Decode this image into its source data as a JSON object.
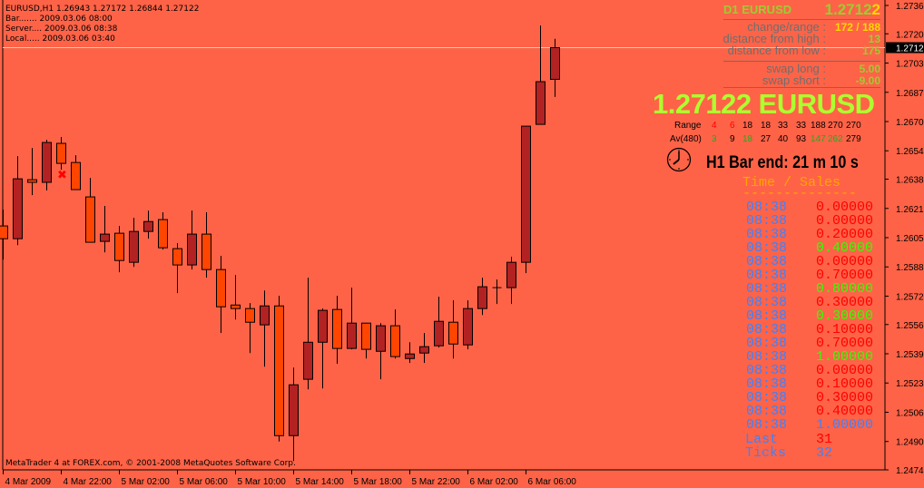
{
  "colors": {
    "background": "#FF6347",
    "bull": "#B22222",
    "bear": "#FF4500",
    "bid_line": "#7FFFD4",
    "green": "#ADFF2F",
    "gold": "#FFD700",
    "gray": "#6E6E6E",
    "ts_time": "#3C82FF",
    "red": "#FF0000",
    "lime": "#33FF00"
  },
  "header": {
    "line1": "EURUSD,H1  1.26943 1.27172 1.26844 1.27122",
    "line2": "Bar....... 2009.03.06 08:00",
    "line3": "Server.... 2009.03.06 08:38",
    "line4": "Local..... 2009.03.06 03:40"
  },
  "copyright": "MetaTrader 4 at FOREX.com, © 2001-2008 MetaQuotes Software Corp.",
  "panel": {
    "title": "D1 EURUSD",
    "price_main": "1.2712",
    "price_last_digit": "2",
    "change_range_label": "change/range :",
    "change_range_value": "172 / 188",
    "dist_high_label": "distance from high :",
    "dist_high_value": "13",
    "dist_low_label": "distance from low :",
    "dist_low_value": "175",
    "swap_long_label": "swap long :",
    "swap_long_value": "5.00",
    "swap_short_label": "swap short :",
    "swap_short_value": "-9.00",
    "big_price": "1.27122 EURUSD",
    "range_label": "Range",
    "range_values": [
      {
        "v": "4",
        "c": "red"
      },
      {
        "v": "6",
        "c": "red"
      },
      {
        "v": "18",
        "c": "black"
      },
      {
        "v": "18",
        "c": "black"
      },
      {
        "v": "33",
        "c": "black"
      },
      {
        "v": "33",
        "c": "black"
      },
      {
        "v": "188",
        "c": "black"
      },
      {
        "v": "270",
        "c": "black"
      },
      {
        "v": "270",
        "c": "black"
      }
    ],
    "av_label": "Av(480)",
    "av_values": [
      {
        "v": "3",
        "c": "green"
      },
      {
        "v": "9",
        "c": "black"
      },
      {
        "v": "18",
        "c": "green"
      },
      {
        "v": "27",
        "c": "black"
      },
      {
        "v": "40",
        "c": "black"
      },
      {
        "v": "93",
        "c": "black"
      },
      {
        "v": "147",
        "c": "green"
      },
      {
        "v": "262",
        "c": "green"
      },
      {
        "v": "279",
        "c": "black"
      }
    ],
    "clock_icon": "clock-icon",
    "bar_end": "H1 Bar end: 21 m 10 s"
  },
  "time_sales": {
    "title": "Time / Sales",
    "divider": "--------------",
    "rows": [
      {
        "time": "08:38",
        "value": "0.00000",
        "c": "red"
      },
      {
        "time": "08:38",
        "value": "0.00000",
        "c": "red"
      },
      {
        "time": "08:38",
        "value": "0.20000",
        "c": "red"
      },
      {
        "time": "08:38",
        "value": "0.40000",
        "c": "green"
      },
      {
        "time": "08:38",
        "value": "0.00000",
        "c": "red"
      },
      {
        "time": "08:38",
        "value": "0.70000",
        "c": "red"
      },
      {
        "time": "08:38",
        "value": "0.80000",
        "c": "green"
      },
      {
        "time": "08:38",
        "value": "0.30000",
        "c": "red"
      },
      {
        "time": "08:38",
        "value": "0.30000",
        "c": "green"
      },
      {
        "time": "08:38",
        "value": "0.10000",
        "c": "red"
      },
      {
        "time": "08:38",
        "value": "0.70000",
        "c": "red"
      },
      {
        "time": "08:38",
        "value": "1.00000",
        "c": "green"
      },
      {
        "time": "08:38",
        "value": "0.00000",
        "c": "red"
      },
      {
        "time": "08:38",
        "value": "0.10000",
        "c": "red"
      },
      {
        "time": "08:38",
        "value": "0.30000",
        "c": "red"
      },
      {
        "time": "08:38",
        "value": "0.40000",
        "c": "red"
      },
      {
        "time": "08:38",
        "value": "1.00000",
        "c": "blue"
      }
    ],
    "last_label": "Last",
    "last_value": "31",
    "ticks_label": "Ticks",
    "ticks_value": "32"
  },
  "chart_data": {
    "type": "candlestick",
    "symbol": "EURUSD",
    "timeframe": "H1",
    "ylim": [
      1.2474,
      1.2736
    ],
    "y_ticks": [
      "1.27360",
      "1.27200",
      "1.27035",
      "1.26870",
      "1.26705",
      "1.26540",
      "1.26380",
      "1.26215",
      "1.26050",
      "1.25885",
      "1.25720",
      "1.25560",
      "1.25395",
      "1.25230",
      "1.25065",
      "1.24900",
      "1.24740"
    ],
    "x_ticks": [
      "4 Mar 2009",
      "4 Mar 22:00",
      "5 Mar 02:00",
      "5 Mar 06:00",
      "5 Mar 10:00",
      "5 Mar 14:00",
      "5 Mar 18:00",
      "5 Mar 22:00",
      "6 Mar 02:00",
      "6 Mar 06:00"
    ],
    "bid": "1.27122",
    "columns": [
      "time",
      "open",
      "high",
      "low",
      "close"
    ],
    "candles": [
      [
        "2009.03.04 18:00",
        1.26116,
        1.26208,
        1.25926,
        1.26044
      ],
      [
        "2009.03.04 19:00",
        1.26044,
        1.2651,
        1.26008,
        1.26382
      ],
      [
        "2009.03.04 20:00",
        1.26377,
        1.26556,
        1.2629,
        1.26362
      ],
      [
        "2009.03.04 21:00",
        1.26362,
        1.26602,
        1.26316,
        1.26587
      ],
      [
        "2009.03.04 22:00",
        1.26582,
        1.26618,
        1.26433,
        1.26469
      ],
      [
        "2009.03.04 23:00",
        1.26474,
        1.26515,
        1.26321,
        1.26321
      ],
      [
        "2009.03.05 00:00",
        1.2628,
        1.26387,
        1.26024,
        1.26024
      ],
      [
        "2009.03.05 01:00",
        1.26029,
        1.26229,
        1.25967,
        1.2607
      ],
      [
        "2009.03.05 02:00",
        1.26075,
        1.26116,
        1.25855,
        1.25921
      ],
      [
        "2009.03.05 03:00",
        1.25911,
        1.26162,
        1.25885,
        1.26085
      ],
      [
        "2009.03.05 04:00",
        1.26085,
        1.26203,
        1.26044,
        1.26141
      ],
      [
        "2009.03.05 05:00",
        1.26152,
        1.26193,
        1.25983,
        1.25993
      ],
      [
        "2009.03.05 06:00",
        1.25988,
        1.26019,
        1.25737,
        1.25896
      ],
      [
        "2009.03.05 07:00",
        1.25896,
        1.26203,
        1.2587,
        1.2607
      ],
      [
        "2009.03.05 08:00",
        1.2607,
        1.26193,
        1.25824,
        1.2587
      ],
      [
        "2009.03.05 09:00",
        1.2587,
        1.25947,
        1.25512,
        1.2566
      ],
      [
        "2009.03.05 10:00",
        1.2567,
        1.25839,
        1.25588,
        1.2565
      ],
      [
        "2009.03.05 11:00",
        1.2565,
        1.25681,
        1.25399,
        1.25573
      ],
      [
        "2009.03.05 12:00",
        1.25558,
        1.25752,
        1.25322,
        1.25665
      ],
      [
        "2009.03.05 13:00",
        1.25665,
        1.25722,
        1.249,
        1.24933
      ],
      [
        "2009.03.05 14:00",
        1.24933,
        1.25317,
        1.2479,
        1.2522
      ],
      [
        "2009.03.05 15:00",
        1.25251,
        1.25824,
        1.25194,
        1.2546
      ],
      [
        "2009.03.05 16:00",
        1.2546,
        1.2565,
        1.25199,
        1.2564
      ],
      [
        "2009.03.05 17:00",
        1.25645,
        1.25722,
        1.25338,
        1.25425
      ],
      [
        "2009.03.05 18:00",
        1.25425,
        1.25768,
        1.2542,
        1.25568
      ],
      [
        "2009.03.05 19:00",
        1.25568,
        1.25568,
        1.25368,
        1.2542
      ],
      [
        "2009.03.05 20:00",
        1.25409,
        1.25568,
        1.25251,
        1.25553
      ],
      [
        "2009.03.05 21:00",
        1.25553,
        1.25645,
        1.25368,
        1.25379
      ],
      [
        "2009.03.05 22:00",
        1.25368,
        1.2546,
        1.25343,
        1.25394
      ],
      [
        "2009.03.05 23:00",
        1.25399,
        1.25512,
        1.25343,
        1.25435
      ],
      [
        "2009.03.06 00:00",
        1.2544,
        1.25717,
        1.2543,
        1.25578
      ],
      [
        "2009.03.06 01:00",
        1.25573,
        1.25696,
        1.25368,
        1.2545
      ],
      [
        "2009.03.06 02:00",
        1.25445,
        1.25696,
        1.2542,
        1.2565
      ],
      [
        "2009.03.06 03:00",
        1.2565,
        1.25824,
        1.25614,
        1.25773
      ],
      [
        "2009.03.06 04:00",
        1.25768,
        1.25814,
        1.25676,
        1.25768
      ],
      [
        "2009.03.06 05:00",
        1.25768,
        1.25942,
        1.25676,
        1.25911
      ],
      [
        "2009.03.06 06:00",
        1.25911,
        1.26679,
        1.2585,
        1.26679
      ],
      [
        "2009.03.06 07:00",
        1.26689,
        1.27247,
        1.26689,
        1.2693
      ],
      [
        "2009.03.06 08:00",
        1.26943,
        1.27172,
        1.26844,
        1.27122
      ]
    ],
    "markers": [
      {
        "time": "2009.03.04 22:00",
        "symbol": "x",
        "color": "#FF0000"
      }
    ]
  }
}
